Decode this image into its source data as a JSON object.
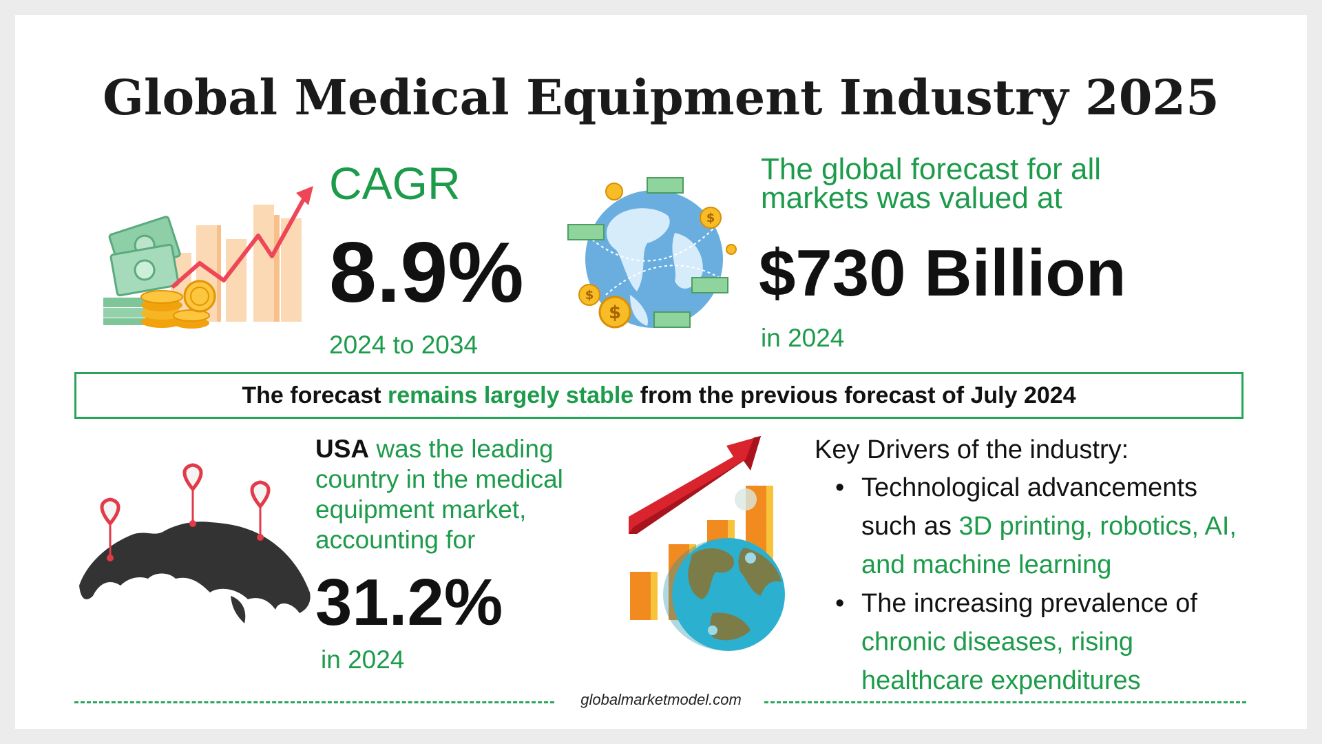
{
  "title": "Global Medical Equipment Industry 2025",
  "cagr": {
    "label": "CAGR",
    "value": "8.9%",
    "range": "2024 to 2034"
  },
  "forecast": {
    "text": "The global forecast for all markets was valued at",
    "value": "$730 Billion",
    "year": "in 2024"
  },
  "banner": {
    "part1": "The forecast ",
    "highlight": "remains largely stable",
    "part2": " from the previous forecast of July 2024"
  },
  "usa": {
    "country": "USA",
    "text": " was the leading country in the medical equipment market, accounting for",
    "value": "31.2%",
    "year": "in 2024"
  },
  "drivers": {
    "title": "Key Drivers of the industry:",
    "items": [
      {
        "lead": "Technological advancements such as ",
        "highlight": "3D printing, robotics, AI, and machine learning"
      },
      {
        "lead": "The increasing prevalence of ",
        "highlight": "chronic diseases, rising healthcare expenditures"
      }
    ]
  },
  "footer": "globalmarketmodel.com",
  "colors": {
    "accent_green": "#1c9b4a",
    "border_green": "#27a559",
    "text_dark": "#111111"
  },
  "icons": [
    "money-growth-chart-icon",
    "globe-money-icon",
    "world-map-pins-icon",
    "globe-growth-chart-icon"
  ]
}
